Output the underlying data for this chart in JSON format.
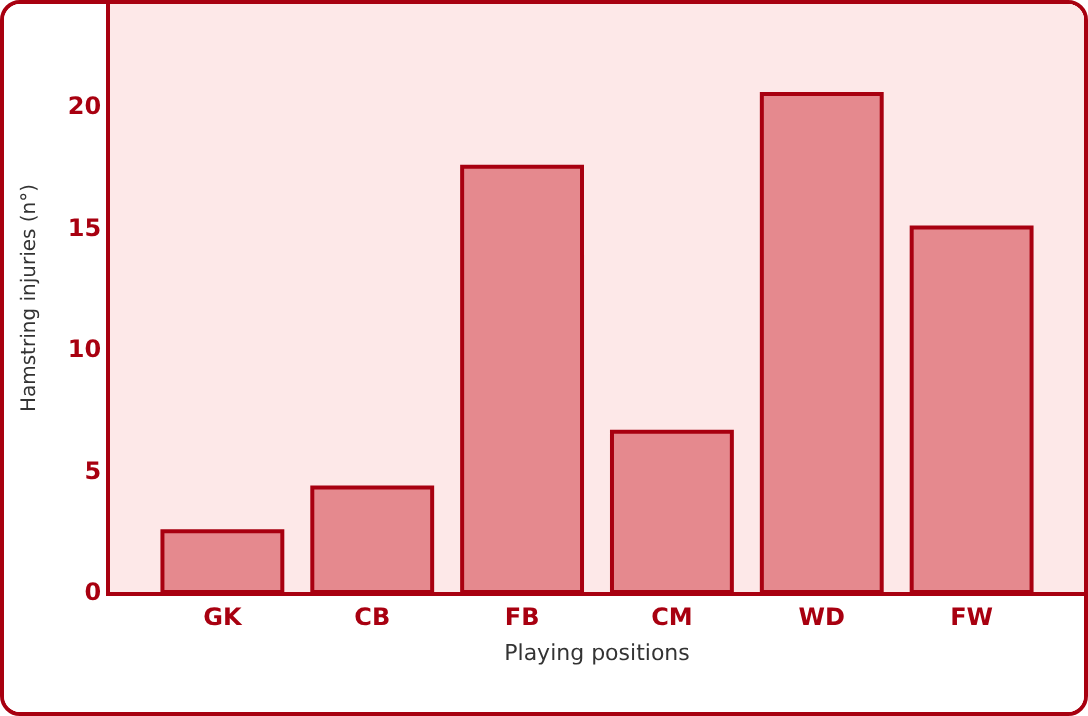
{
  "chart_data": {
    "type": "bar",
    "xlabel": "Playing positions",
    "ylabel": "Hamstring injuries (n°)",
    "categories": [
      "GK",
      "CB",
      "FB",
      "CM",
      "WD",
      "FW"
    ],
    "values": [
      2.5,
      4.3,
      17.5,
      6.6,
      20.5,
      15
    ],
    "color": "#e5898e",
    "ylim": [
      0,
      24.2
    ],
    "yticks": [
      0,
      5,
      10,
      15,
      20
    ],
    "grid": false
  }
}
